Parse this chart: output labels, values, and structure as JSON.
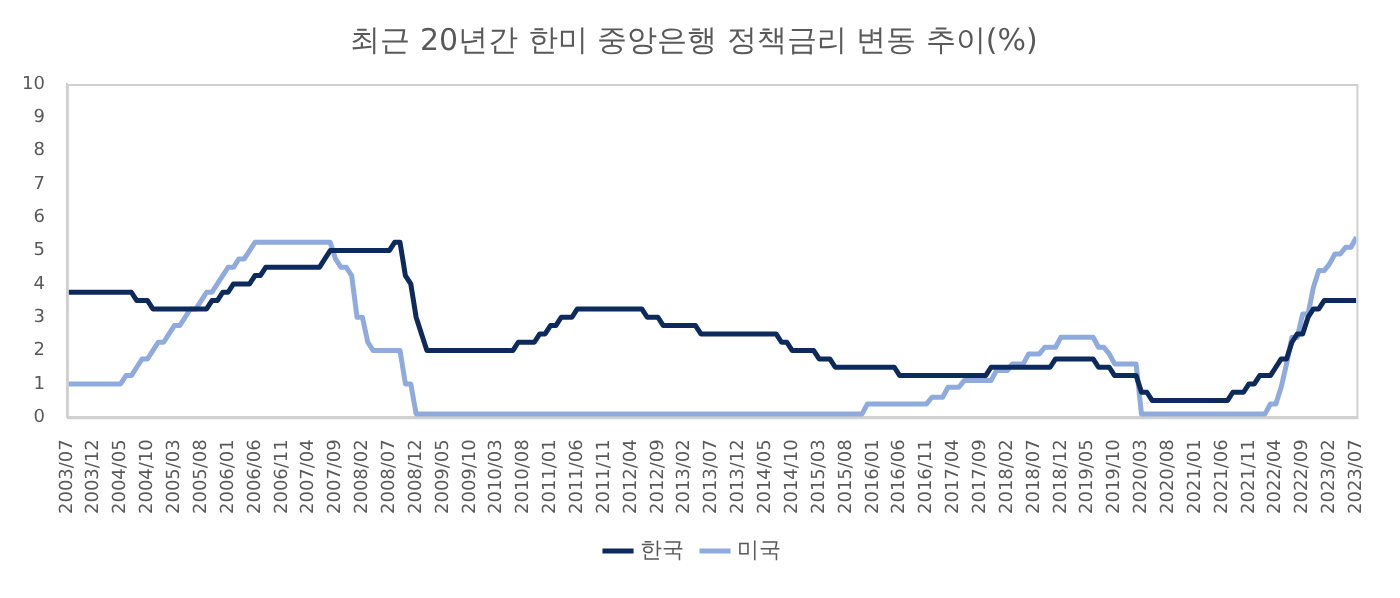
{
  "chart_data": {
    "type": "line",
    "title": "최근 20년간 한미 중앙은행 정책금리 변동 추이(%)",
    "series": [
      {
        "name": "한국",
        "color": "#0d2a5c",
        "x": [
          "2003-07",
          "2004-07",
          "2004-08",
          "2004-10",
          "2004-11",
          "2005-09",
          "2005-10",
          "2005-11",
          "2005-12",
          "2006-01",
          "2006-02",
          "2006-05",
          "2006-06",
          "2006-07",
          "2006-08",
          "2007-06",
          "2007-07",
          "2007-08",
          "2008-07",
          "2008-08",
          "2008-09",
          "2008-10",
          "2008-11",
          "2008-12",
          "2009-01",
          "2009-02",
          "2010-06",
          "2010-07",
          "2010-10",
          "2010-11",
          "2010-12",
          "2011-01",
          "2011-02",
          "2011-03",
          "2011-05",
          "2011-06",
          "2012-06",
          "2012-07",
          "2012-09",
          "2012-10",
          "2013-04",
          "2013-05",
          "2014-07",
          "2014-08",
          "2014-09",
          "2014-10",
          "2015-02",
          "2015-03",
          "2015-05",
          "2015-06",
          "2016-05",
          "2016-06",
          "2017-10",
          "2017-11",
          "2018-10",
          "2018-11",
          "2019-06",
          "2019-07",
          "2019-09",
          "2019-10",
          "2020-02",
          "2020-03",
          "2020-04",
          "2020-05",
          "2021-07",
          "2021-08",
          "2021-10",
          "2021-11",
          "2021-12",
          "2022-01",
          "2022-03",
          "2022-04",
          "2022-05",
          "2022-06",
          "2022-07",
          "2022-08",
          "2022-09",
          "2022-10",
          "2022-11",
          "2022-12",
          "2023-01",
          "2023-07"
        ],
        "values": [
          3.75,
          3.75,
          3.5,
          3.5,
          3.25,
          3.25,
          3.5,
          3.5,
          3.75,
          3.75,
          4.0,
          4.0,
          4.25,
          4.25,
          4.5,
          4.5,
          4.75,
          5.0,
          5.0,
          5.25,
          5.25,
          4.25,
          4.0,
          3.0,
          2.5,
          2.0,
          2.0,
          2.25,
          2.25,
          2.5,
          2.5,
          2.75,
          2.75,
          3.0,
          3.0,
          3.25,
          3.25,
          3.0,
          3.0,
          2.75,
          2.75,
          2.5,
          2.5,
          2.25,
          2.25,
          2.0,
          2.0,
          1.75,
          1.75,
          1.5,
          1.5,
          1.25,
          1.25,
          1.5,
          1.5,
          1.75,
          1.75,
          1.5,
          1.5,
          1.25,
          1.25,
          0.75,
          0.75,
          0.5,
          0.5,
          0.75,
          0.75,
          1.0,
          1.0,
          1.25,
          1.25,
          1.5,
          1.75,
          1.75,
          2.25,
          2.5,
          2.5,
          3.0,
          3.25,
          3.25,
          3.5,
          3.5
        ]
      },
      {
        "name": "미국",
        "color": "#8faadc",
        "x": [
          "2003-07",
          "2004-05",
          "2004-06",
          "2004-07",
          "2004-08",
          "2004-09",
          "2004-10",
          "2004-11",
          "2004-12",
          "2005-01",
          "2005-02",
          "2005-03",
          "2005-04",
          "2005-05",
          "2005-06",
          "2005-07",
          "2005-08",
          "2005-09",
          "2005-10",
          "2005-11",
          "2005-12",
          "2006-01",
          "2006-02",
          "2006-03",
          "2006-04",
          "2006-05",
          "2006-06",
          "2007-08",
          "2007-09",
          "2007-10",
          "2007-11",
          "2007-12",
          "2008-01",
          "2008-02",
          "2008-03",
          "2008-04",
          "2008-09",
          "2008-10",
          "2008-11",
          "2008-12",
          "2015-11",
          "2015-12",
          "2016-11",
          "2016-12",
          "2017-02",
          "2017-03",
          "2017-05",
          "2017-06",
          "2017-11",
          "2017-12",
          "2018-02",
          "2018-03",
          "2018-05",
          "2018-06",
          "2018-08",
          "2018-09",
          "2018-11",
          "2018-12",
          "2019-06",
          "2019-07",
          "2019-08",
          "2019-09",
          "2019-10",
          "2020-02",
          "2020-03",
          "2022-02",
          "2022-03",
          "2022-04",
          "2022-05",
          "2022-06",
          "2022-07",
          "2022-08",
          "2022-09",
          "2022-10",
          "2022-11",
          "2022-12",
          "2023-01",
          "2023-02",
          "2023-03",
          "2023-04",
          "2023-05",
          "2023-06",
          "2023-07"
        ],
        "values": [
          1.0,
          1.0,
          1.25,
          1.25,
          1.5,
          1.75,
          1.75,
          2.0,
          2.25,
          2.25,
          2.5,
          2.75,
          2.75,
          3.0,
          3.25,
          3.25,
          3.5,
          3.75,
          3.75,
          4.0,
          4.25,
          4.5,
          4.5,
          4.75,
          4.75,
          5.0,
          5.25,
          5.25,
          4.75,
          4.5,
          4.5,
          4.25,
          3.0,
          3.0,
          2.25,
          2.0,
          2.0,
          1.0,
          1.0,
          0.1,
          0.1,
          0.4,
          0.4,
          0.6,
          0.6,
          0.9,
          0.9,
          1.1,
          1.1,
          1.4,
          1.4,
          1.6,
          1.6,
          1.9,
          1.9,
          2.1,
          2.1,
          2.4,
          2.4,
          2.1,
          2.1,
          1.9,
          1.6,
          1.6,
          0.1,
          0.1,
          0.4,
          0.4,
          0.9,
          1.6,
          2.4,
          2.4,
          3.1,
          3.1,
          3.9,
          4.4,
          4.4,
          4.6,
          4.9,
          4.9,
          5.1,
          5.1,
          5.4
        ]
      }
    ],
    "xlim": [
      "2003-07",
      "2023-07"
    ],
    "xticks": [
      {
        "value": "2003-07",
        "label": "2003/07"
      },
      {
        "value": "2003-12",
        "label": "2003/12"
      },
      {
        "value": "2004-05",
        "label": "2004/05"
      },
      {
        "value": "2004-10",
        "label": "2004/10"
      },
      {
        "value": "2005-03",
        "label": "2005/03"
      },
      {
        "value": "2005-08",
        "label": "2005/08"
      },
      {
        "value": "2006-01",
        "label": "2006/01"
      },
      {
        "value": "2006-06",
        "label": "2006/06"
      },
      {
        "value": "2006-11",
        "label": "2006/11"
      },
      {
        "value": "2007-04",
        "label": "2007/04"
      },
      {
        "value": "2007-09",
        "label": "2007/09"
      },
      {
        "value": "2008-02",
        "label": "2008/02"
      },
      {
        "value": "2008-07",
        "label": "2008/07"
      },
      {
        "value": "2008-12",
        "label": "2008/12"
      },
      {
        "value": "2009-05",
        "label": "2009/05"
      },
      {
        "value": "2009-10",
        "label": "2009/10"
      },
      {
        "value": "2010-03",
        "label": "2010/03"
      },
      {
        "value": "2010-08",
        "label": "2010/08"
      },
      {
        "value": "2011-01",
        "label": "2011/01"
      },
      {
        "value": "2011-06",
        "label": "2011/06"
      },
      {
        "value": "2011-11",
        "label": "2011/11"
      },
      {
        "value": "2012-04",
        "label": "2012/04"
      },
      {
        "value": "2012-09",
        "label": "2012/09"
      },
      {
        "value": "2013-02",
        "label": "2013/02"
      },
      {
        "value": "2013-07",
        "label": "2013/07"
      },
      {
        "value": "2013-12",
        "label": "2013/12"
      },
      {
        "value": "2014-05",
        "label": "2014/05"
      },
      {
        "value": "2014-10",
        "label": "2014/10"
      },
      {
        "value": "2015-03",
        "label": "2015/03"
      },
      {
        "value": "2015-08",
        "label": "2015/08"
      },
      {
        "value": "2016-01",
        "label": "2016/01"
      },
      {
        "value": "2016-06",
        "label": "2016/06"
      },
      {
        "value": "2016-11",
        "label": "2016/11"
      },
      {
        "value": "2017-04",
        "label": "2017/04"
      },
      {
        "value": "2017-09",
        "label": "2017/09"
      },
      {
        "value": "2018-02",
        "label": "2018/02"
      },
      {
        "value": "2018-07",
        "label": "2018/07"
      },
      {
        "value": "2018-12",
        "label": "2018/12"
      },
      {
        "value": "2019-05",
        "label": "2019/05"
      },
      {
        "value": "2019-10",
        "label": "2019/10"
      },
      {
        "value": "2020-03",
        "label": "2020/03"
      },
      {
        "value": "2020-08",
        "label": "2020/08"
      },
      {
        "value": "2021-01",
        "label": "2021/01"
      },
      {
        "value": "2021-06",
        "label": "2021/06"
      },
      {
        "value": "2021-11",
        "label": "2021/11"
      },
      {
        "value": "2022-04",
        "label": "2022/04"
      },
      {
        "value": "2022-09",
        "label": "2022/09"
      },
      {
        "value": "2023-02",
        "label": "2023/02"
      },
      {
        "value": "2023-07",
        "label": "2023/07"
      }
    ],
    "ylim": [
      0,
      10
    ],
    "yticks": [
      0,
      1,
      2,
      3,
      4,
      5,
      6,
      7,
      8,
      9,
      10
    ],
    "grid": false,
    "legend": "bottom",
    "marker": "none",
    "line_style": "solid"
  }
}
